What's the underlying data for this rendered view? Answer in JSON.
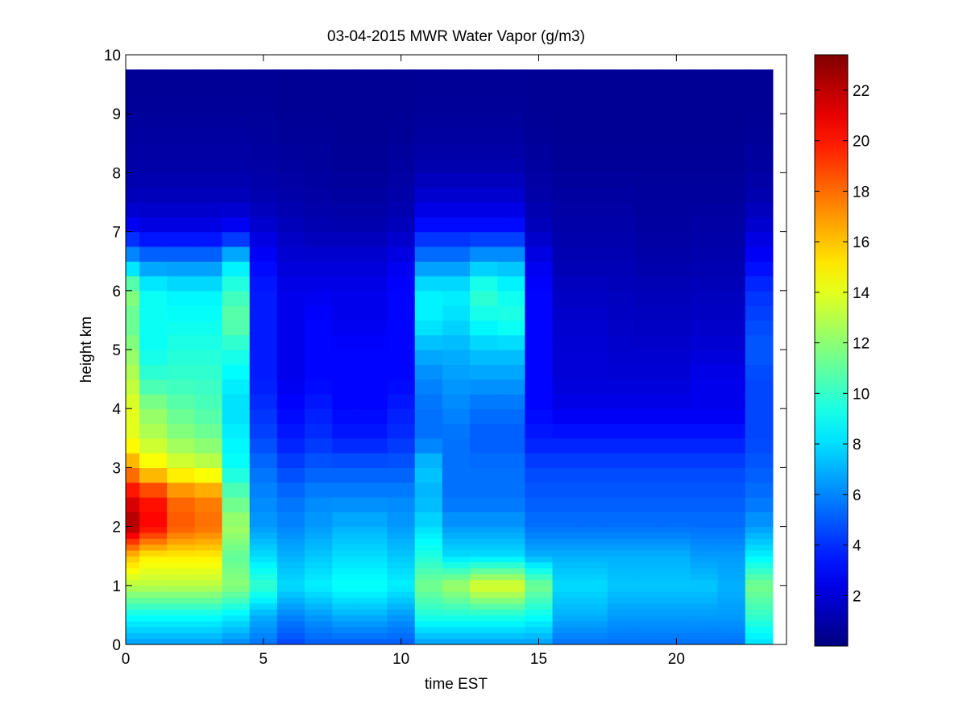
{
  "chart_data": {
    "type": "heatmap",
    "title": "03-04-2015 MWR Water Vapor (g/m3)",
    "xlabel": "time EST",
    "ylabel": "height km",
    "xlim": [
      0,
      24
    ],
    "ylim": [
      0,
      10
    ],
    "x_ticks": [
      0,
      5,
      10,
      15,
      20
    ],
    "y_ticks": [
      0,
      1,
      2,
      3,
      4,
      5,
      6,
      7,
      8,
      9,
      10
    ],
    "colorbar": {
      "colormap": "jet",
      "range": [
        0,
        23.4
      ],
      "ticks": [
        2,
        4,
        6,
        8,
        10,
        12,
        14,
        16,
        18,
        20,
        22
      ]
    },
    "x_centers": [
      0,
      1,
      2,
      3,
      4,
      5,
      6,
      7,
      8,
      9,
      10,
      11,
      12,
      13,
      14,
      15,
      16,
      17,
      18,
      19,
      20,
      21,
      22,
      23
    ],
    "y_bounds": [
      0,
      0.1,
      0.2,
      0.3,
      0.4,
      0.5,
      0.6,
      0.7,
      0.8,
      0.9,
      1.0,
      1.1,
      1.2,
      1.3,
      1.4,
      1.5,
      1.6,
      1.7,
      1.8,
      1.9,
      2.0,
      2.25,
      2.5,
      2.75,
      3.0,
      3.25,
      3.5,
      3.75,
      4.0,
      4.25,
      4.5,
      4.75,
      5.0,
      5.25,
      5.5,
      5.75,
      6.0,
      6.25,
      6.5,
      6.75,
      7.0,
      7.25,
      7.5,
      7.75,
      8.0,
      8.25,
      8.5,
      8.75,
      9.0,
      9.25,
      9.5,
      9.75
    ],
    "profiles": {
      "heights": [
        0,
        0.5,
        1,
        1.5,
        2,
        2.5,
        3,
        3.5,
        4,
        4.5,
        5,
        5.5,
        6,
        6.5,
        7,
        7.5,
        8,
        8.5,
        9,
        9.75
      ],
      "values": [
        [
          6.5,
          9,
          13,
          16,
          22.5,
          21,
          17,
          14,
          14,
          13,
          12,
          11,
          12,
          7,
          3,
          1.5,
          1,
          0.8,
          0.6,
          0.5
        ],
        [
          6.5,
          9,
          13,
          15,
          20.5,
          20,
          15,
          13,
          12,
          10,
          9,
          9,
          9,
          6,
          2.5,
          1.5,
          1,
          0.8,
          0.6,
          0.5
        ],
        [
          6.5,
          9,
          13,
          15,
          18.5,
          18,
          14,
          12,
          11,
          10,
          9.5,
          9,
          8.5,
          6,
          2.5,
          1.5,
          1,
          0.8,
          0.6,
          0.5
        ],
        [
          6.5,
          9,
          13,
          15,
          18,
          17.5,
          13.5,
          11.5,
          10.5,
          10,
          9.5,
          9,
          8.5,
          6,
          2.5,
          1.5,
          1,
          0.8,
          0.6,
          0.5
        ],
        [
          6,
          8.5,
          12,
          11,
          12.5,
          11,
          9,
          8.5,
          8,
          8.5,
          9.5,
          11,
          10,
          8,
          3,
          1.5,
          1,
          0.8,
          0.6,
          0.5
        ],
        [
          5.5,
          7,
          10,
          8,
          6.5,
          6,
          5.5,
          4.5,
          4,
          3.5,
          3.5,
          3.5,
          3.5,
          3,
          2,
          1.2,
          0.9,
          0.7,
          0.6,
          0.5
        ],
        [
          4.5,
          6,
          8,
          7,
          6,
          5.5,
          4.5,
          3.5,
          3,
          2.5,
          2.5,
          2.5,
          2.5,
          2,
          1.5,
          1,
          0.8,
          0.6,
          0.5,
          0.5
        ],
        [
          5,
          6.5,
          8.5,
          7.5,
          6.5,
          6,
          5,
          4,
          3.5,
          3,
          3,
          3,
          2.5,
          2,
          1.2,
          0.9,
          0.7,
          0.6,
          0.5,
          0.5
        ],
        [
          5,
          7,
          9,
          8,
          7,
          6,
          5,
          3.5,
          3,
          3,
          3,
          2.5,
          2.5,
          2,
          1.2,
          0.8,
          0.6,
          0.5,
          0.5,
          0.5
        ],
        [
          5,
          7,
          9,
          8,
          7,
          6,
          5,
          3.5,
          3,
          3,
          3,
          2.5,
          2.5,
          2,
          1.2,
          0.8,
          0.6,
          0.5,
          0.5,
          0.5
        ],
        [
          5,
          6.5,
          8.5,
          7.5,
          6.5,
          6,
          5,
          4,
          3.5,
          3,
          3,
          3,
          3,
          2.5,
          1.5,
          1,
          0.8,
          0.6,
          0.5,
          0.5
        ],
        [
          6.5,
          9.5,
          11.5,
          9.5,
          8,
          7,
          7.5,
          5.5,
          5.5,
          6,
          7,
          8.5,
          8.5,
          6,
          3.5,
          2,
          1.2,
          0.8,
          0.6,
          0.5
        ],
        [
          6.5,
          9.5,
          12.5,
          8,
          6.5,
          5.5,
          5.5,
          5.5,
          6,
          6.5,
          7,
          8,
          8.5,
          6,
          3.5,
          2,
          1.2,
          0.8,
          0.6,
          0.5
        ],
        [
          6.5,
          9.5,
          14,
          8,
          6.5,
          5.5,
          5.5,
          5,
          5.5,
          6.5,
          7.5,
          9,
          10,
          7,
          3.5,
          2,
          1.2,
          0.8,
          0.6,
          0.5
        ],
        [
          6.5,
          9.5,
          14,
          8,
          6.5,
          5.5,
          5.5,
          5,
          5.5,
          6.5,
          7.5,
          9.5,
          9,
          7,
          3.5,
          2,
          1.2,
          0.8,
          0.6,
          0.5
        ],
        [
          6.5,
          9,
          11.5,
          7,
          5.5,
          5,
          4.5,
          3.5,
          3,
          3,
          3,
          3,
          3,
          2.5,
          1.5,
          1,
          0.8,
          0.6,
          0.5,
          0.5
        ],
        [
          5.5,
          7,
          8,
          7,
          5.5,
          5,
          4.5,
          3.5,
          2.5,
          2,
          2,
          1.8,
          1.5,
          1.2,
          1,
          0.8,
          0.6,
          0.5,
          0.5,
          0.5
        ],
        [
          5.5,
          7,
          8,
          7,
          5.5,
          5,
          4.5,
          3.5,
          2.5,
          2,
          2,
          1.8,
          1.5,
          1.2,
          1,
          0.8,
          0.6,
          0.5,
          0.5,
          0.5
        ],
        [
          5.5,
          6.5,
          7.5,
          7,
          5.5,
          5,
          4.5,
          3.5,
          2.5,
          2,
          1.8,
          1.6,
          1.4,
          1.2,
          1,
          0.8,
          0.6,
          0.5,
          0.5,
          0.5
        ],
        [
          5.5,
          6.5,
          7.5,
          7,
          5.5,
          5,
          4.5,
          3.5,
          2.5,
          2,
          1.8,
          1.5,
          1.3,
          1,
          0.8,
          0.7,
          0.6,
          0.5,
          0.5,
          0.5
        ],
        [
          5.5,
          6.5,
          7.5,
          7,
          5.5,
          5,
          4.5,
          3.5,
          2.5,
          2,
          1.8,
          1.5,
          1.3,
          1,
          0.8,
          0.7,
          0.6,
          0.5,
          0.5,
          0.5
        ],
        [
          5.5,
          6.5,
          7.5,
          6.5,
          5.5,
          5,
          4.5,
          3.5,
          2.5,
          2.5,
          2,
          1.6,
          1.4,
          1.1,
          0.9,
          0.7,
          0.6,
          0.5,
          0.5,
          0.5
        ],
        [
          5.5,
          6.5,
          7,
          6.5,
          5.5,
          5,
          4.5,
          3.5,
          2.5,
          2.5,
          2,
          1.6,
          1.4,
          1.1,
          0.9,
          0.7,
          0.6,
          0.5,
          0.5,
          0.5
        ],
        [
          8,
          10,
          11.5,
          8.5,
          6.5,
          5.5,
          5,
          4.5,
          4.5,
          4.5,
          5,
          4.5,
          4,
          3,
          2,
          1.2,
          0.8,
          0.6,
          0.5,
          0.5
        ]
      ]
    }
  }
}
